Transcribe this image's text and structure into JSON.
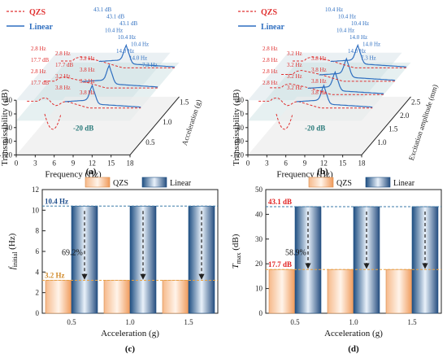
{
  "chart_data": [
    {
      "panel": "(a)",
      "type": "line",
      "view": "3d",
      "xlabel": "Frequency (Hz)",
      "ylabel": "Transmissibility (dB)",
      "zlabel": "Acceleration (g)",
      "x_ticks": [
        "0",
        "3",
        "6",
        "9",
        "12",
        "15",
        "18"
      ],
      "y_ticks": [
        "40",
        "0",
        "-40",
        "-80",
        "-120"
      ],
      "z_ticks": [
        "0.5",
        "1.0",
        "1.5"
      ],
      "xlim": [
        0,
        18
      ],
      "ylim": [
        -120,
        40
      ],
      "legend": "top-left",
      "series": [
        {
          "name": "QZS",
          "color": "#e03030",
          "style": "dashed"
        },
        {
          "name": "Linear",
          "color": "#2f6fc0",
          "style": "solid"
        }
      ],
      "curve_labels_linear": [
        {
          "text": "43.1 dB",
          "color": "#2f6fc0"
        },
        {
          "text": "43.1 dB",
          "color": "#2f6fc0"
        },
        {
          "text": "43.1 dB",
          "color": "#2f6fc0"
        },
        {
          "text": "10.4 Hz",
          "color": "#2f6fc0"
        },
        {
          "text": "10.4 Hz",
          "color": "#2f6fc0"
        },
        {
          "text": "10.4 Hz",
          "color": "#2f6fc0"
        },
        {
          "text": "14.0 Hz",
          "color": "#2f6fc0"
        },
        {
          "text": "14.0 Hz",
          "color": "#2f6fc0"
        },
        {
          "text": "7.3 Hz",
          "color": "#2f6fc0"
        }
      ],
      "curve_labels_qzs": [
        {
          "text": "2.8 Hz",
          "color": "#e03030"
        },
        {
          "text": "17.7 dB",
          "color": "#e03030"
        },
        {
          "text": "2.8 Hz",
          "color": "#e03030"
        },
        {
          "text": "17.7 dB",
          "color": "#e03030"
        },
        {
          "text": "2.8 Hz",
          "color": "#e03030"
        },
        {
          "text": "17.7 dB",
          "color": "#e03030"
        },
        {
          "text": "3.2 Hz",
          "color": "#e03030"
        },
        {
          "text": "3.8 Hz",
          "color": "#e03030"
        },
        {
          "text": "3.2 Hz",
          "color": "#e03030"
        },
        {
          "text": "3.8 Hz",
          "color": "#e03030"
        },
        {
          "text": "3.2 Hz",
          "color": "#e03030"
        },
        {
          "text": "3.8 Hz",
          "color": "#e03030"
        }
      ],
      "annotation": "-20 dB"
    },
    {
      "panel": "(b)",
      "type": "line",
      "view": "3d",
      "xlabel": "Frequency (Hz)",
      "ylabel": "Transmissibility (dB)",
      "zlabel": "Excitation amplitude (mm)",
      "x_ticks": [
        "0",
        "3",
        "6",
        "9",
        "12",
        "15",
        "18"
      ],
      "y_ticks": [
        "40",
        "0",
        "-40",
        "-80",
        "-120"
      ],
      "z_ticks": [
        "1.0",
        "1.5",
        "2.0",
        "2.5"
      ],
      "xlim": [
        0,
        18
      ],
      "ylim": [
        -120,
        40
      ],
      "legend": "top-left",
      "series": [
        {
          "name": "QZS",
          "color": "#e03030",
          "style": "dashed"
        },
        {
          "name": "Linear",
          "color": "#2f6fc0",
          "style": "solid"
        }
      ],
      "curve_labels_linear": [
        {
          "text": "10.4 Hz",
          "color": "#2f6fc0"
        },
        {
          "text": "10.4 Hz",
          "color": "#2f6fc0"
        },
        {
          "text": "10.4 Hz",
          "color": "#2f6fc0"
        },
        {
          "text": "10.4 Hz",
          "color": "#2f6fc0"
        },
        {
          "text": "14.0 Hz",
          "color": "#2f6fc0"
        },
        {
          "text": "14.0 Hz",
          "color": "#2f6fc0"
        },
        {
          "text": "14.0 Hz",
          "color": "#2f6fc0"
        },
        {
          "text": "7.3 Hz",
          "color": "#2f6fc0"
        }
      ],
      "curve_labels_qzs": [
        {
          "text": "2.8 Hz",
          "color": "#e03030"
        },
        {
          "text": "2.8 Hz",
          "color": "#e03030"
        },
        {
          "text": "2.8 Hz",
          "color": "#e03030"
        },
        {
          "text": "2.8 Hz",
          "color": "#e03030"
        },
        {
          "text": "3.2 Hz",
          "color": "#e03030"
        },
        {
          "text": "3.2 Hz",
          "color": "#e03030"
        },
        {
          "text": "3.2 Hz",
          "color": "#e03030"
        },
        {
          "text": "3.2 Hz",
          "color": "#e03030"
        },
        {
          "text": "3.8 Hz",
          "color": "#e03030"
        },
        {
          "text": "3.8 Hz",
          "color": "#e03030"
        },
        {
          "text": "3.8 Hz",
          "color": "#e03030"
        },
        {
          "text": "3.8 Hz",
          "color": "#e03030"
        }
      ],
      "annotation": "-20 dB"
    },
    {
      "panel": "(c)",
      "type": "bar",
      "categories": [
        "0.5",
        "1.0",
        "1.5"
      ],
      "xlabel": "Acceleration (g)",
      "ylabel_main": "f",
      "ylabel_sub": "initial",
      "ylabel_unit": " (Hz)",
      "ylim": [
        0,
        12
      ],
      "y_ticks": [
        0,
        2,
        4,
        6,
        8,
        10,
        12
      ],
      "legend": "top-center",
      "series": [
        {
          "name": "QZS",
          "values": [
            3.2,
            3.2,
            3.2
          ],
          "color": "#f4a46a"
        },
        {
          "name": "Linear",
          "values": [
            10.4,
            10.4,
            10.4
          ],
          "color": "#2b5a8a"
        }
      ],
      "ref_lines": [
        {
          "value": 10.4,
          "label": "10.4 Hz",
          "color": "#1f4e8c"
        },
        {
          "value": 3.2,
          "label": "3.2 Hz",
          "color": "#d08a2a"
        }
      ],
      "annotation": "69.2%"
    },
    {
      "panel": "(d)",
      "type": "bar",
      "categories": [
        "0.5",
        "1.0",
        "1.5"
      ],
      "xlabel": "Acceleration (g)",
      "ylabel_main": "T",
      "ylabel_sub": "max",
      "ylabel_unit": " (dB)",
      "ylim": [
        0,
        50
      ],
      "y_ticks": [
        0,
        10,
        20,
        30,
        40,
        50
      ],
      "legend": "top-center",
      "series": [
        {
          "name": "QZS",
          "values": [
            17.7,
            17.7,
            17.7
          ],
          "color": "#f4a46a"
        },
        {
          "name": "Linear",
          "values": [
            43.1,
            43.1,
            43.1
          ],
          "color": "#2b5a8a"
        }
      ],
      "ref_lines": [
        {
          "value": 43.1,
          "label": "43.1 dB",
          "color": "#e02020"
        },
        {
          "value": 17.7,
          "label": "17.7 dB",
          "color": "#e02020"
        }
      ],
      "annotation": "58.9%"
    }
  ]
}
